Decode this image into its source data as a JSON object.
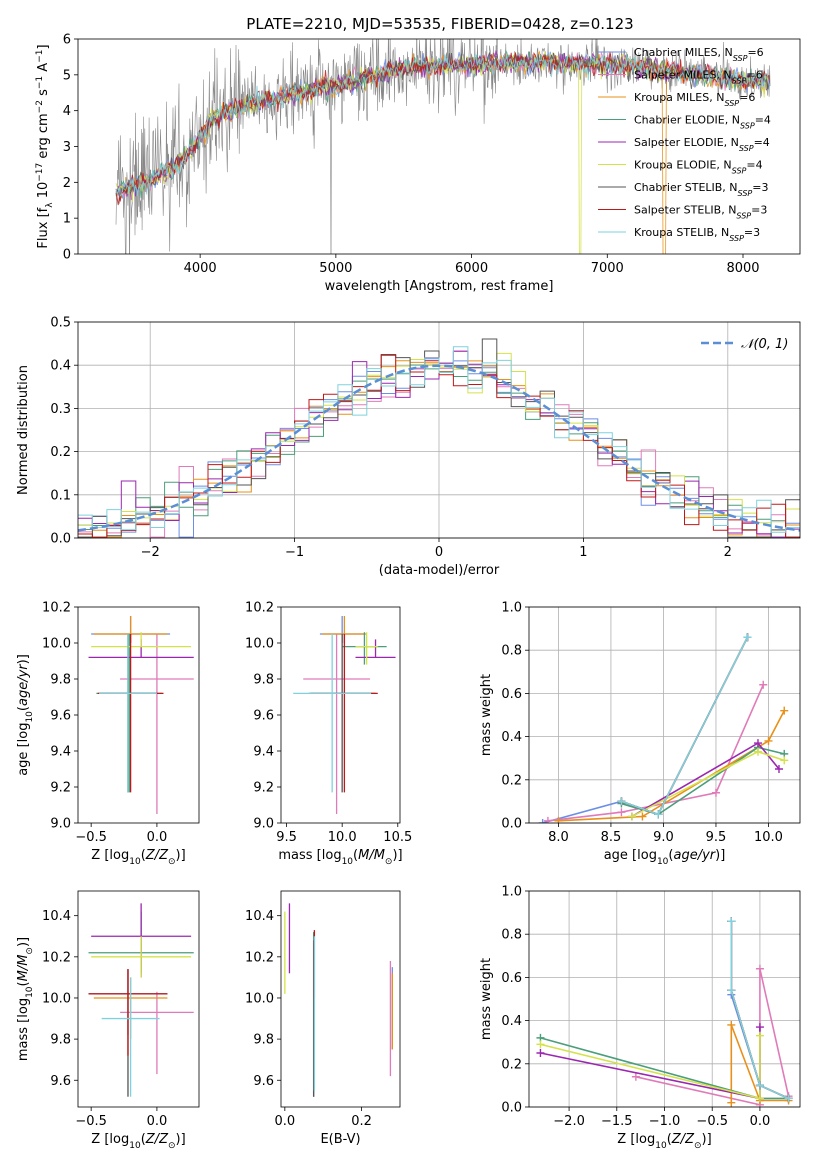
{
  "title": "PLATE=2210, MJD=53535, FIBERID=0428, z=0.123",
  "models": [
    {
      "label": "Chabrier MILES, N_SSP=6",
      "color": "#6c8ee6"
    },
    {
      "label": "Salpeter MILES, N_SSP=6",
      "color": "#e07bb9"
    },
    {
      "label": "Kroupa MILES, N_SSP=6",
      "color": "#e8901a"
    },
    {
      "label": "Chabrier ELODIE, N_SSP=4",
      "color": "#4a9e7a"
    },
    {
      "label": "Salpeter ELODIE, N_SSP=4",
      "color": "#9b27b0"
    },
    {
      "label": "Kroupa ELODIE, N_SSP=4",
      "color": "#d4e24a"
    },
    {
      "label": "Chabrier STELIB, N_SSP=3",
      "color": "#555555"
    },
    {
      "label": "Salpeter STELIB, N_SSP=3",
      "color": "#c01818"
    },
    {
      "label": "Kroupa STELIB, N_SSP=3",
      "color": "#7fd2dd"
    }
  ],
  "chart_data": [
    {
      "id": "spectrum",
      "type": "line",
      "xlabel": "wavelength [Angstrom, rest frame]",
      "ylabel": "Flux [f_λ 10^-17 erg cm^-2 s^-1 A^-1]",
      "xlim": [
        3100,
        8420
      ],
      "ylim": [
        0,
        6
      ],
      "xticks": [
        4000,
        5000,
        6000,
        7000,
        8000
      ],
      "yticks": [
        0,
        1,
        2,
        3,
        4,
        5,
        6
      ],
      "data_color": "#888888",
      "continuum_knots": {
        "x": [
          3400,
          3600,
          3800,
          3950,
          4100,
          4300,
          4600,
          5000,
          5500,
          6000,
          6500,
          7000,
          7500,
          8000,
          8200
        ],
        "y": [
          1.75,
          2.0,
          2.4,
          3.0,
          3.8,
          4.1,
          4.4,
          4.7,
          5.2,
          5.3,
          5.35,
          5.3,
          5.1,
          4.85,
          4.8
        ]
      },
      "data_range": [
        3380,
        8200
      ],
      "grid": false,
      "legend": "upper right"
    },
    {
      "id": "residuals",
      "type": "step",
      "xlabel": "(data-model)/error",
      "ylabel": "Normed distribution",
      "xlim": [
        -2.5,
        2.5
      ],
      "ylim": [
        0,
        0.5
      ],
      "xticks": [
        -2,
        -1,
        0,
        1,
        2
      ],
      "yticks": [
        0.0,
        0.1,
        0.2,
        0.3,
        0.4,
        0.5
      ],
      "bin_width": 0.1,
      "reference": {
        "label": "𝒩(0, 1)",
        "color": "#5a8fd6"
      },
      "grid": true,
      "legend": "upper right"
    },
    {
      "id": "age-Z",
      "type": "errorbar",
      "xlabel": "Z [log10(Z/Z⊙)]",
      "ylabel": "age  [log10(age/yr)]",
      "xlim": [
        -0.6,
        0.32
      ],
      "ylim": [
        9.0,
        10.2
      ],
      "xticks": [
        -0.5,
        0.0
      ],
      "yticks": [
        9.0,
        9.2,
        9.4,
        9.6,
        9.8,
        10.0,
        10.2
      ],
      "points": [
        {
          "x": -0.2,
          "y": 10.05,
          "xerr": 0.3,
          "yerr": [
            0.05,
            0.1
          ]
        },
        {
          "x": 0.0,
          "y": 9.8,
          "xerr": 0.28,
          "yerr": [
            0.75,
            0.25
          ]
        },
        {
          "x": -0.2,
          "y": 10.05,
          "xerr": 0.28,
          "yerr": [
            0.05,
            0.1
          ]
        },
        {
          "x": -0.21,
          "y": 9.72,
          "xerr": 0.25,
          "yerr": [
            0.55,
            0.33
          ]
        },
        {
          "x": -0.12,
          "y": 9.92,
          "xerr": 0.4,
          "yerr": [
            0.0,
            0.1
          ]
        },
        {
          "x": -0.12,
          "y": 9.98,
          "xerr": 0.38,
          "yerr": [
            0.0,
            0.08
          ]
        },
        {
          "x": -0.22,
          "y": 9.72,
          "xerr": 0.22,
          "yerr": [
            0.55,
            0.33
          ]
        },
        {
          "x": -0.2,
          "y": 9.72,
          "xerr": 0.25,
          "yerr": [
            0.55,
            0.33
          ]
        },
        {
          "x": -0.22,
          "y": 9.72,
          "xerr": 0.22,
          "yerr": [
            0.55,
            0.33
          ]
        }
      ]
    },
    {
      "id": "age-mass",
      "type": "errorbar",
      "xlabel": "mass [log10(M/M⊙)]",
      "ylabel": "",
      "xlim": [
        9.45,
        10.52
      ],
      "ylim": [
        9.0,
        10.2
      ],
      "xticks": [
        9.5,
        10.0,
        10.5
      ],
      "yticks": [
        9.0,
        9.2,
        9.4,
        9.6,
        9.8,
        10.0,
        10.2
      ],
      "points": [
        {
          "x": 10.0,
          "y": 10.05,
          "xerr": 0.2,
          "yerr": [
            0.05,
            0.1
          ]
        },
        {
          "x": 9.95,
          "y": 9.8,
          "xerr": 0.3,
          "yerr": [
            0.75,
            0.25
          ]
        },
        {
          "x": 10.02,
          "y": 10.05,
          "xerr": 0.2,
          "yerr": [
            0.05,
            0.1
          ]
        },
        {
          "x": 10.2,
          "y": 9.98,
          "xerr": 0.2,
          "yerr": [
            0.1,
            0.08
          ]
        },
        {
          "x": 10.3,
          "y": 9.92,
          "xerr": 0.18,
          "yerr": [
            0.0,
            0.1
          ]
        },
        {
          "x": 10.22,
          "y": 9.98,
          "xerr": 0.1,
          "yerr": [
            0.1,
            0.08
          ]
        },
        {
          "x": 10.0,
          "y": 9.72,
          "xerr": 0.3,
          "yerr": [
            0.55,
            0.33
          ]
        },
        {
          "x": 10.02,
          "y": 9.72,
          "xerr": 0.3,
          "yerr": [
            0.55,
            0.33
          ]
        },
        {
          "x": 9.91,
          "y": 9.72,
          "xerr": 0.35,
          "yerr": [
            0.55,
            0.33
          ]
        }
      ]
    },
    {
      "id": "weight-age",
      "type": "line",
      "xlabel": "age  [log10(age/yr)]",
      "ylabel": "mass weight",
      "xlim": [
        7.72,
        10.3
      ],
      "ylim": [
        0,
        1
      ],
      "xticks": [
        8.0,
        8.5,
        9.0,
        9.5,
        10.0
      ],
      "yticks": [
        0.0,
        0.2,
        0.4,
        0.6,
        0.8,
        1.0
      ],
      "grid": true,
      "series": [
        {
          "x": [
            7.85,
            8.6,
            8.95,
            9.8
          ],
          "y": [
            0.0,
            0.1,
            0.04,
            0.86
          ]
        },
        {
          "x": [
            7.9,
            8.6,
            9.5,
            9.95
          ],
          "y": [
            0.01,
            0.05,
            0.14,
            0.64
          ]
        },
        {
          "x": [
            8.0,
            8.8,
            10.0,
            10.15
          ],
          "y": [
            0.01,
            0.03,
            0.38,
            0.52
          ]
        },
        {
          "x": [
            8.6,
            8.95,
            9.9,
            10.15
          ],
          "y": [
            0.09,
            0.04,
            0.35,
            0.32
          ]
        },
        {
          "x": [
            8.7,
            9.9,
            10.1
          ],
          "y": [
            0.03,
            0.37,
            0.25
          ]
        },
        {
          "x": [
            8.7,
            9.9,
            10.15
          ],
          "y": [
            0.03,
            0.33,
            0.29
          ]
        },
        {
          "x": [
            8.6,
            8.95,
            9.8
          ],
          "y": [
            0.1,
            0.04,
            0.86
          ]
        },
        {
          "x": [
            8.6,
            8.95,
            9.8
          ],
          "y": [
            0.1,
            0.04,
            0.86
          ]
        },
        {
          "x": [
            8.6,
            8.95,
            9.8
          ],
          "y": [
            0.1,
            0.04,
            0.86
          ]
        }
      ]
    },
    {
      "id": "mass-Z",
      "type": "errorbar",
      "xlabel": "Z [log10(Z/Z⊙)]",
      "ylabel": "mass [log10(M/M⊙)]",
      "xlim": [
        -0.6,
        0.32
      ],
      "ylim": [
        9.47,
        10.52
      ],
      "xticks": [
        -0.5,
        0.0
      ],
      "yticks": [
        9.6,
        9.8,
        10.0,
        10.2,
        10.4
      ],
      "points": [
        {
          "x": -0.22,
          "y": 10.02,
          "xerr": 0.3,
          "yerr": [
            0.2,
            0.12
          ]
        },
        {
          "x": 0.0,
          "y": 9.93,
          "xerr": 0.28,
          "yerr": [
            0.3,
            0.1
          ]
        },
        {
          "x": -0.2,
          "y": 10.0,
          "xerr": 0.28,
          "yerr": [
            0.2,
            0.1
          ]
        },
        {
          "x": -0.12,
          "y": 10.22,
          "xerr": 0.4,
          "yerr": [
            0.1,
            0.2
          ]
        },
        {
          "x": -0.12,
          "y": 10.3,
          "xerr": 0.38,
          "yerr": [
            0.2,
            0.16
          ]
        },
        {
          "x": -0.12,
          "y": 10.2,
          "xerr": 0.38,
          "yerr": [
            0.1,
            0.1
          ]
        },
        {
          "x": -0.22,
          "y": 10.02,
          "xerr": 0.3,
          "yerr": [
            0.5,
            0.12
          ]
        },
        {
          "x": -0.22,
          "y": 10.02,
          "xerr": 0.3,
          "yerr": [
            0.3,
            0.12
          ]
        },
        {
          "x": -0.2,
          "y": 9.9,
          "xerr": 0.22,
          "yerr": [
            0.38,
            0.2
          ]
        }
      ]
    },
    {
      "id": "mass-EBV",
      "type": "errorbar",
      "xlabel": "E(B-V)",
      "ylabel": "",
      "xlim": [
        -0.01,
        0.3
      ],
      "ylim": [
        9.47,
        10.52
      ],
      "xticks": [
        0.0,
        0.2
      ],
      "yticks": [
        9.6,
        9.8,
        10.0,
        10.2,
        10.4
      ],
      "points": [
        {
          "x": 0.28,
          "y": 10.0,
          "xerr": 0.0,
          "yerr": [
            0.25,
            0.15
          ]
        },
        {
          "x": 0.275,
          "y": 9.9,
          "xerr": 0.0,
          "yerr": [
            0.28,
            0.28
          ]
        },
        {
          "x": 0.28,
          "y": 10.0,
          "xerr": 0.0,
          "yerr": [
            0.25,
            0.12
          ]
        },
        {
          "x": 0.075,
          "y": 10.2,
          "xerr": 0.0,
          "yerr": [
            0.68,
            0.12
          ]
        },
        {
          "x": 0.012,
          "y": 10.3,
          "xerr": 0.0,
          "yerr": [
            0.18,
            0.16
          ]
        },
        {
          "x": 0.0,
          "y": 10.2,
          "xerr": 0.0,
          "yerr": [
            0.18,
            0.22
          ]
        },
        {
          "x": 0.075,
          "y": 10.0,
          "xerr": 0.0,
          "yerr": [
            0.48,
            0.28
          ]
        },
        {
          "x": 0.077,
          "y": 10.2,
          "xerr": 0.0,
          "yerr": [
            0.2,
            0.13
          ]
        },
        {
          "x": 0.077,
          "y": 9.9,
          "xerr": 0.0,
          "yerr": [
            0.35,
            0.4
          ]
        }
      ]
    },
    {
      "id": "weight-Z",
      "type": "line",
      "xlabel": "Z [log10(Z/Z⊙)]",
      "ylabel": "mass weight",
      "xlim": [
        -2.42,
        0.42
      ],
      "ylim": [
        0,
        1
      ],
      "xticks": [
        -2.0,
        -1.5,
        -1.0,
        -0.5,
        0.0
      ],
      "yticks": [
        0.0,
        0.2,
        0.4,
        0.6,
        0.8,
        1.0
      ],
      "grid": true,
      "series": [
        {
          "x": [
            -0.3,
            -0.3,
            0.0,
            0.3
          ],
          "y": [
            0.86,
            0.52,
            0.1,
            0.04
          ]
        },
        {
          "x": [
            -1.3,
            0.0,
            0.0,
            0.3
          ],
          "y": [
            0.14,
            0.01,
            0.64,
            0.05
          ]
        },
        {
          "x": [
            -0.3,
            -0.3,
            0.0,
            0.3
          ],
          "y": [
            0.02,
            0.38,
            0.03,
            0.03
          ]
        },
        {
          "x": [
            -2.3,
            0.0,
            0.3
          ],
          "y": [
            0.32,
            0.04,
            0.04
          ]
        },
        {
          "x": [
            -2.3,
            0.0,
            0.0
          ],
          "y": [
            0.25,
            0.04,
            0.37
          ]
        },
        {
          "x": [
            -2.3,
            0.0,
            0.0
          ],
          "y": [
            0.29,
            0.04,
            0.33
          ]
        },
        {
          "x": [
            -0.3,
            -0.3,
            0.0,
            0.3
          ],
          "y": [
            0.86,
            0.54,
            0.1,
            0.04
          ]
        },
        {
          "x": [
            -0.3,
            -0.3,
            0.0,
            0.3
          ],
          "y": [
            0.86,
            0.54,
            0.1,
            0.04
          ]
        },
        {
          "x": [
            -0.3,
            -0.3,
            0.0,
            0.3
          ],
          "y": [
            0.86,
            0.54,
            0.1,
            0.04
          ]
        }
      ]
    }
  ]
}
